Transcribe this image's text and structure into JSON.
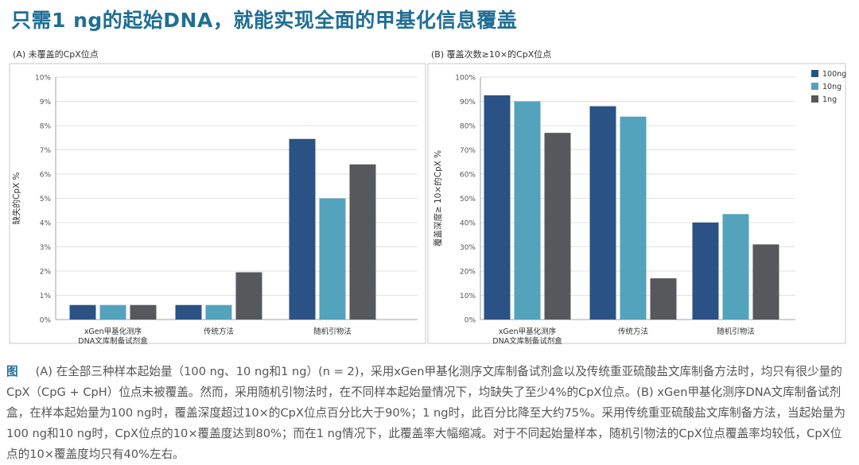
{
  "headline": "只需1 ng的起始DNA，就能实现全面的甲基化信息覆盖",
  "chart_data": [
    {
      "type": "bar",
      "title": "(A) 未覆盖的CpX位点",
      "xlabel": "",
      "ylabel": "缺失的CpX %",
      "ylim": [
        0,
        10
      ],
      "yticks": [
        0,
        1,
        2,
        3,
        4,
        5,
        6,
        7,
        8,
        9,
        10
      ],
      "ytick_labels": [
        "0%",
        "1%",
        "2%",
        "3%",
        "4%",
        "5%",
        "6%",
        "7%",
        "8%",
        "9%",
        "10%"
      ],
      "categories": [
        [
          "xGen甲基化测序",
          "DNA文库制备试剂盒"
        ],
        [
          "传统方法"
        ],
        [
          "随机引物法"
        ]
      ],
      "series": [
        {
          "name": "100ng",
          "color": "#2b5284",
          "values": [
            0.6,
            0.6,
            7.45
          ]
        },
        {
          "name": "10ng",
          "color": "#53a3bd",
          "values": [
            0.6,
            0.6,
            5.0
          ]
        },
        {
          "name": "1ng",
          "color": "#57585c",
          "values": [
            0.6,
            1.95,
            6.4
          ]
        }
      ]
    },
    {
      "type": "bar",
      "title": "(B) 覆盖次数≥10×的CpX位点",
      "xlabel": "",
      "ylabel": "覆盖深度≥ 10×的CpX %",
      "ylim": [
        0,
        100
      ],
      "yticks": [
        0,
        10,
        20,
        30,
        40,
        50,
        60,
        70,
        80,
        90,
        100
      ],
      "ytick_labels": [
        "0%",
        "10%",
        "20%",
        "30%",
        "40%",
        "50%",
        "60%",
        "70%",
        "80%",
        "90%",
        "100%"
      ],
      "categories": [
        [
          "xGen甲基化测序",
          "DNA文库制备试剂盒"
        ],
        [
          "传统方法"
        ],
        [
          "随机引物法"
        ]
      ],
      "legend": {
        "position": "top-right",
        "entries": [
          "100ng",
          "10ng",
          "1ng"
        ]
      },
      "series": [
        {
          "name": "100ng",
          "color": "#2b5284",
          "values": [
            92.5,
            88.0,
            40.0
          ]
        },
        {
          "name": "10ng",
          "color": "#53a3bd",
          "values": [
            90.0,
            83.7,
            43.5
          ]
        },
        {
          "name": "1ng",
          "color": "#57585c",
          "values": [
            77.0,
            17.0,
            31.0
          ]
        }
      ]
    }
  ],
  "caption": {
    "lead": "图",
    "text": "(A) 在全部三种样本起始量（100 ng、10 ng和1 ng）(n = 2)，采用xGen甲基化测序文库制备试剂盒以及传统重亚硫酸盐文库制备方法时，均只有很少量的CpX（CpG + CpH）位点未被覆盖。然而，采用随机引物法时，在不同样本起始量情况下，均缺失了至少4%的CpX位点。(B) xGen甲基化测序DNA文库制备试剂盒，在样本起始量为100 ng时，覆盖深度超过10×的CpX位点百分比大于90%；1 ng时，此百分比降至大约75%。采用传统重亚硫酸盐文库制备方法，当起始量为100 ng和10 ng时，CpX位点的10×覆盖度达到80%；而在1 ng情况下，此覆盖率大幅缩减。对于不同起始量样本，随机引物法的CpX位点覆盖率均较低，CpX位点的10×覆盖度均只有40%左右。"
  }
}
